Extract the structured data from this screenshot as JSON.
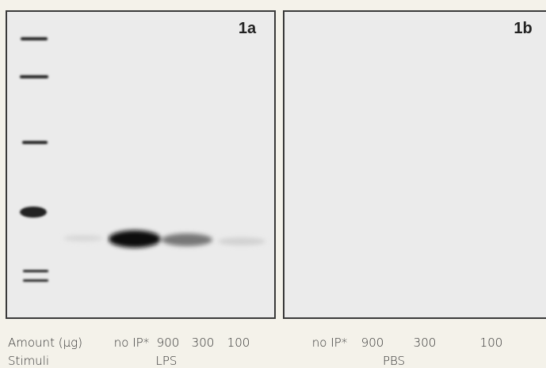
{
  "panels": [
    {
      "label": "1a",
      "stimulus": "LPS",
      "lanes": [
        "no IP*",
        "900",
        "300",
        "100"
      ]
    },
    {
      "label": "1b",
      "stimulus": "PBS",
      "lanes": [
        "no IP*",
        "900",
        "300",
        "100"
      ]
    }
  ],
  "row_labels": {
    "amount": "Amount (µg)",
    "stimuli": "Stimuli"
  }
}
